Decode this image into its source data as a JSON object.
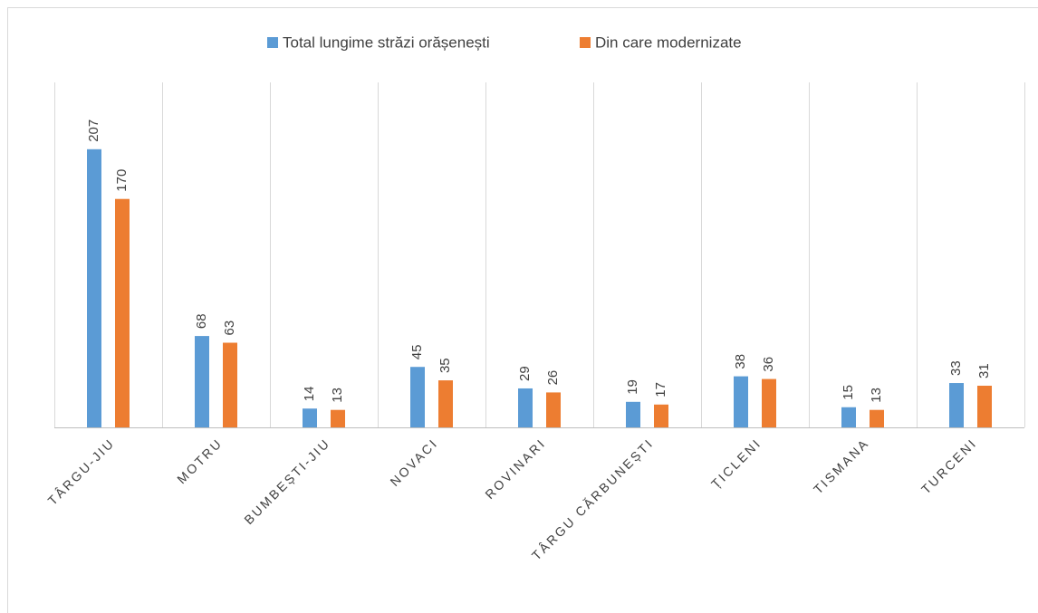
{
  "chart_data": {
    "type": "bar",
    "categories": [
      "TÂRGU-JIU",
      "MOTRU",
      "BUMBEȘTI-JIU",
      "NOVACI",
      "ROVINARI",
      "TÂRGU CĂRBUNEȘTI",
      "ȚICLENI",
      "TISMANA",
      "TURCENI"
    ],
    "series": [
      {
        "name": "Total lungime străzi orășenești",
        "color": "#5b9bd5",
        "values": [
          207,
          68,
          14,
          45,
          29,
          19,
          38,
          15,
          33
        ]
      },
      {
        "name": "Din care modernizate",
        "color": "#ed7d31",
        "values": [
          170,
          63,
          13,
          35,
          26,
          17,
          36,
          13,
          31
        ]
      }
    ],
    "ylim": [
      0,
      250
    ],
    "legend": "top"
  }
}
